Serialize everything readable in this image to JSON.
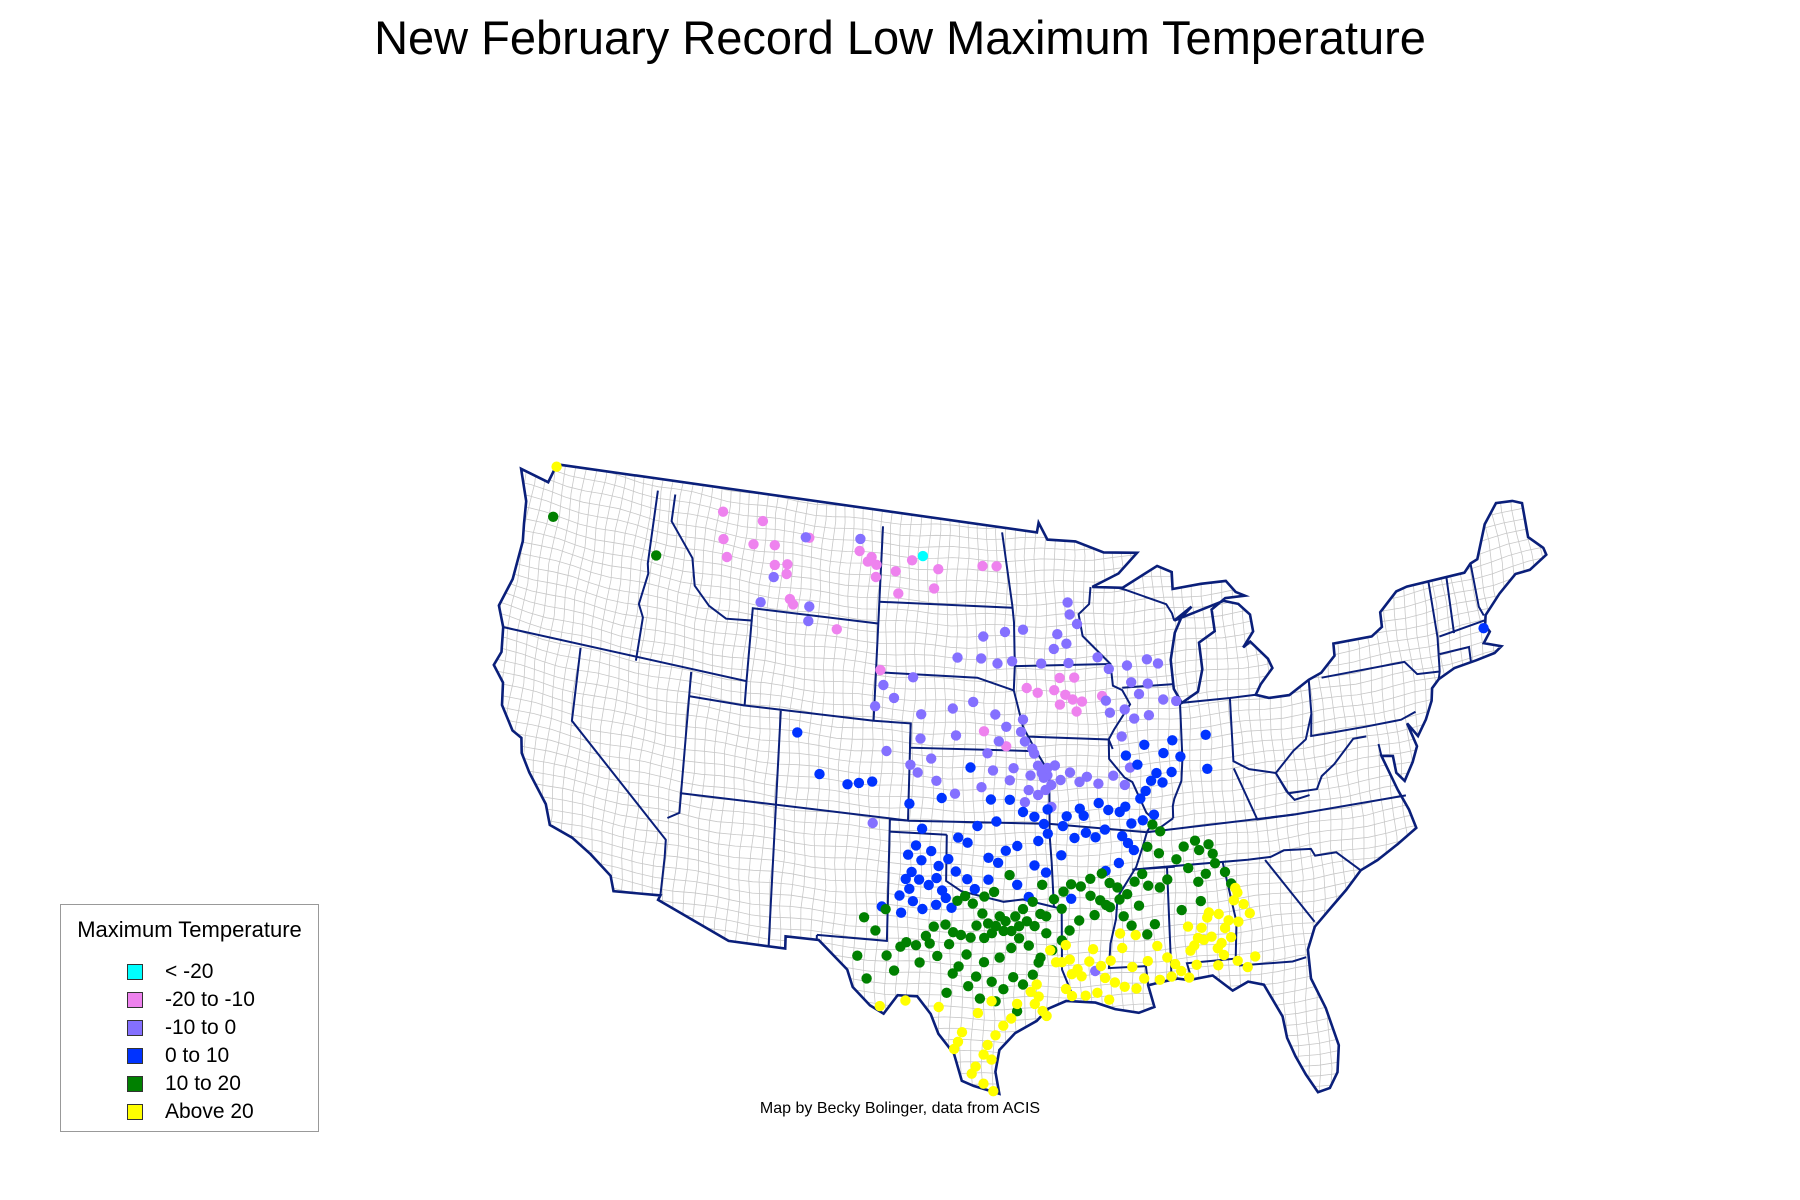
{
  "title": "New February Record Low Maximum Temperature",
  "credit": "Map by Becky Bolinger, data from ACIS",
  "legend": {
    "title": "Maximum Temperature",
    "items": [
      {
        "label": "< -20",
        "color": "#00ffff"
      },
      {
        "label": "-20 to -10",
        "color": "#ee82ee"
      },
      {
        "label": "-10 to 0",
        "color": "#8470ff"
      },
      {
        "label": "0 to 10",
        "color": "#0033ff"
      },
      {
        "label": "10 to 20",
        "color": "#008000"
      },
      {
        "label": "Above 20",
        "color": "#ffff00"
      }
    ]
  },
  "colors": {
    "state_border": "#0a1f7a",
    "county_border": "#c8c8c8"
  },
  "stations": {
    "lt_m20": [
      [
        -101.7,
        47.9
      ]
    ],
    "m20_m10": [
      [
        -113.2,
        48.7
      ],
      [
        -110.9,
        48.6
      ],
      [
        -108.2,
        48.2
      ],
      [
        -113.0,
        47.6
      ],
      [
        -111.3,
        47.6
      ],
      [
        -110.1,
        47.7
      ],
      [
        -104.6,
        47.7
      ],
      [
        -102.3,
        47.7
      ],
      [
        -100.8,
        47.4
      ],
      [
        -98.3,
        47.6
      ],
      [
        -97.5,
        47.6
      ],
      [
        -109.3,
        47.0
      ],
      [
        -112.7,
        46.9
      ],
      [
        -110.0,
        46.9
      ],
      [
        -109.3,
        46.6
      ],
      [
        -105.3,
        47.9
      ],
      [
        -104.8,
        47.5
      ],
      [
        -104.3,
        47.4
      ],
      [
        -103.2,
        47.2
      ],
      [
        -104.3,
        46.9
      ],
      [
        -101.0,
        46.6
      ],
      [
        -103.0,
        46.3
      ],
      [
        -109.0,
        45.6
      ],
      [
        -108.8,
        45.4
      ],
      [
        -106.3,
        44.6
      ],
      [
        -103.8,
        43.1
      ],
      [
        -94.0,
        43.0
      ],
      [
        -93.2,
        43.0
      ],
      [
        -95.8,
        42.6
      ],
      [
        -95.2,
        42.4
      ],
      [
        -94.3,
        42.5
      ],
      [
        -93.7,
        42.3
      ],
      [
        -93.3,
        42.1
      ],
      [
        -92.8,
        42.0
      ],
      [
        -91.7,
        42.2
      ],
      [
        -94.0,
        41.9
      ],
      [
        -93.1,
        41.6
      ],
      [
        -98.1,
        40.8
      ],
      [
        -96.9,
        40.2
      ]
    ],
    "m10_0": [
      [
        -108.4,
        48.2
      ],
      [
        -105.3,
        48.4
      ],
      [
        -110.0,
        46.4
      ],
      [
        -110.6,
        45.3
      ],
      [
        -107.9,
        45.4
      ],
      [
        -107.9,
        44.8
      ],
      [
        -98.2,
        44.7
      ],
      [
        -97.0,
        44.9
      ],
      [
        -96.0,
        45.0
      ],
      [
        -94.1,
        44.8
      ],
      [
        -93.5,
        46.1
      ],
      [
        -93.4,
        45.6
      ],
      [
        -93.0,
        45.2
      ],
      [
        -94.3,
        44.2
      ],
      [
        -93.6,
        44.4
      ],
      [
        -99.6,
        43.8
      ],
      [
        -98.3,
        43.8
      ],
      [
        -97.4,
        43.6
      ],
      [
        -96.6,
        43.7
      ],
      [
        -95.0,
        43.6
      ],
      [
        -93.5,
        43.6
      ],
      [
        -91.9,
        43.8
      ],
      [
        -91.3,
        43.3
      ],
      [
        -90.3,
        43.4
      ],
      [
        -89.2,
        43.6
      ],
      [
        -88.6,
        43.4
      ],
      [
        -102.0,
        42.9
      ],
      [
        -103.6,
        42.5
      ],
      [
        -103.0,
        42.0
      ],
      [
        -104.0,
        41.6
      ],
      [
        -101.5,
        41.4
      ],
      [
        -99.8,
        41.7
      ],
      [
        -98.7,
        42.0
      ],
      [
        -97.5,
        41.5
      ],
      [
        -96.9,
        41.0
      ],
      [
        -96.0,
        41.3
      ],
      [
        -96.1,
        40.8
      ],
      [
        -95.9,
        40.4
      ],
      [
        -95.5,
        40.1
      ],
      [
        -91.5,
        42.0
      ],
      [
        -91.3,
        41.5
      ],
      [
        -90.5,
        41.6
      ],
      [
        -90.0,
        41.2
      ],
      [
        -89.2,
        41.3
      ],
      [
        -88.4,
        41.9
      ],
      [
        -87.7,
        41.8
      ],
      [
        -99.6,
        40.6
      ],
      [
        -97.3,
        40.4
      ],
      [
        -97.9,
        39.9
      ],
      [
        -101.5,
        40.4
      ],
      [
        -103.3,
        39.8
      ],
      [
        -102.0,
        39.3
      ],
      [
        -100.9,
        39.6
      ],
      [
        -95.4,
        39.9
      ],
      [
        -95.2,
        39.4
      ],
      [
        -94.7,
        39.0
      ],
      [
        -94.3,
        39.4
      ],
      [
        -94.0,
        38.8
      ],
      [
        -93.5,
        39.1
      ],
      [
        -93.0,
        38.7
      ],
      [
        -92.6,
        38.9
      ],
      [
        -92.0,
        38.6
      ],
      [
        -91.2,
        38.9
      ],
      [
        -90.3,
        39.2
      ],
      [
        -95.7,
        38.4
      ],
      [
        -95.2,
        38.2
      ],
      [
        -96.7,
        38.8
      ],
      [
        -96.5,
        39.3
      ],
      [
        -97.6,
        39.2
      ],
      [
        -98.2,
        38.5
      ],
      [
        -99.6,
        38.2
      ],
      [
        -100.6,
        38.7
      ],
      [
        -101.6,
        39.0
      ],
      [
        -94.5,
        37.7
      ],
      [
        -95.9,
        37.9
      ],
      [
        -95.6,
        39.0
      ],
      [
        -95.0,
        39.1
      ],
      [
        -94.7,
        39.3
      ],
      [
        -94.9,
        38.9
      ],
      [
        -94.5,
        38.6
      ],
      [
        -94.8,
        38.4
      ],
      [
        -90.6,
        38.5
      ],
      [
        -103.9,
        36.8
      ],
      [
        -92.3,
        30.9
      ],
      [
        -89.7,
        42.2
      ],
      [
        -89.2,
        42.6
      ],
      [
        -90.1,
        42.7
      ],
      [
        -90.7,
        40.5
      ]
    ],
    "p0_10": [
      [
        -108.1,
        40.2
      ],
      [
        -106.8,
        38.6
      ],
      [
        -105.3,
        38.3
      ],
      [
        -104.7,
        38.4
      ],
      [
        -104.0,
        38.5
      ],
      [
        -102.0,
        37.7
      ],
      [
        -100.3,
        38.0
      ],
      [
        -98.8,
        39.3
      ],
      [
        -97.7,
        38.0
      ],
      [
        -97.4,
        37.1
      ],
      [
        -96.7,
        38.0
      ],
      [
        -96.0,
        37.5
      ],
      [
        -95.4,
        37.3
      ],
      [
        -94.9,
        37.0
      ],
      [
        -94.7,
        37.6
      ],
      [
        -93.7,
        37.3
      ],
      [
        -93.0,
        37.6
      ],
      [
        -92.8,
        37.3
      ],
      [
        -92.0,
        37.8
      ],
      [
        -91.5,
        37.5
      ],
      [
        -90.9,
        37.4
      ],
      [
        -90.6,
        37.6
      ],
      [
        -89.8,
        37.9
      ],
      [
        -89.5,
        38.2
      ],
      [
        -89.2,
        38.6
      ],
      [
        -88.9,
        38.9
      ],
      [
        -88.6,
        38.5
      ],
      [
        -88.1,
        38.9
      ],
      [
        -88.5,
        39.7
      ],
      [
        -88.0,
        40.2
      ],
      [
        -87.6,
        39.5
      ],
      [
        -90.5,
        39.7
      ],
      [
        -89.9,
        39.3
      ],
      [
        -89.5,
        40.1
      ],
      [
        -86.2,
        40.3
      ],
      [
        -86.2,
        38.9
      ],
      [
        -98.4,
        36.9
      ],
      [
        -99.4,
        36.4
      ],
      [
        -98.9,
        36.2
      ],
      [
        -97.8,
        35.6
      ],
      [
        -97.3,
        35.4
      ],
      [
        -96.9,
        35.9
      ],
      [
        -96.3,
        36.1
      ],
      [
        -95.2,
        36.3
      ],
      [
        -94.7,
        36.6
      ],
      [
        -93.9,
        36.9
      ],
      [
        -93.3,
        36.4
      ],
      [
        -92.7,
        36.6
      ],
      [
        -92.2,
        36.4
      ],
      [
        -91.7,
        36.7
      ],
      [
        -90.8,
        36.4
      ],
      [
        -90.3,
        36.9
      ],
      [
        -89.7,
        37.0
      ],
      [
        -89.1,
        37.2
      ],
      [
        -101.3,
        36.7
      ],
      [
        -101.6,
        36.0
      ],
      [
        -102.0,
        35.6
      ],
      [
        -101.3,
        35.4
      ],
      [
        -100.8,
        35.8
      ],
      [
        -100.4,
        35.2
      ],
      [
        -99.9,
        35.5
      ],
      [
        -99.5,
        35.0
      ],
      [
        -98.9,
        34.7
      ],
      [
        -98.5,
        34.3
      ],
      [
        -101.8,
        34.9
      ],
      [
        -102.1,
        34.6
      ],
      [
        -101.9,
        34.2
      ],
      [
        -101.4,
        34.6
      ],
      [
        -100.9,
        34.4
      ],
      [
        -100.5,
        34.7
      ],
      [
        -100.2,
        34.2
      ],
      [
        -102.4,
        33.9
      ],
      [
        -101.7,
        33.7
      ],
      [
        -101.2,
        33.4
      ],
      [
        -100.5,
        33.6
      ],
      [
        -100.0,
        33.9
      ],
      [
        -99.7,
        33.5
      ],
      [
        -103.3,
        33.4
      ],
      [
        -102.3,
        33.2
      ],
      [
        -97.8,
        34.7
      ],
      [
        -96.3,
        34.5
      ],
      [
        -95.7,
        34.0
      ],
      [
        -95.4,
        35.3
      ],
      [
        -94.8,
        35.0
      ],
      [
        -93.5,
        33.9
      ],
      [
        -94.0,
        35.7
      ],
      [
        -91.7,
        35.0
      ],
      [
        -91.0,
        35.3
      ],
      [
        -90.2,
        35.8
      ],
      [
        -90.5,
        36.1
      ],
      [
        -70.9,
        42.6
      ]
    ],
    "p10_20": [
      [
        -122.5,
        46.9
      ],
      [
        -116.6,
        46.4
      ],
      [
        -89.2,
        36.8
      ],
      [
        -88.8,
        36.5
      ],
      [
        -89.5,
        35.9
      ],
      [
        -88.9,
        35.6
      ],
      [
        -88.0,
        35.3
      ],
      [
        -87.6,
        35.8
      ],
      [
        -87.0,
        36.0
      ],
      [
        -86.8,
        35.6
      ],
      [
        -86.3,
        35.8
      ],
      [
        -86.1,
        35.4
      ],
      [
        -86.0,
        35.0
      ],
      [
        -87.4,
        34.9
      ],
      [
        -86.9,
        34.3
      ],
      [
        -86.5,
        34.6
      ],
      [
        -88.5,
        34.5
      ],
      [
        -88.9,
        34.2
      ],
      [
        -89.5,
        34.3
      ],
      [
        -89.8,
        34.8
      ],
      [
        -90.2,
        34.5
      ],
      [
        -90.6,
        34.0
      ],
      [
        -91.1,
        34.3
      ],
      [
        -91.5,
        34.5
      ],
      [
        -91.9,
        34.9
      ],
      [
        -92.5,
        34.7
      ],
      [
        -93.0,
        34.4
      ],
      [
        -93.5,
        34.5
      ],
      [
        -93.9,
        34.2
      ],
      [
        -94.0,
        33.5
      ],
      [
        -92.3,
        33.2
      ],
      [
        -91.7,
        33.6
      ],
      [
        -91.0,
        33.8
      ],
      [
        -90.0,
        33.5
      ],
      [
        -89.2,
        32.7
      ],
      [
        -89.6,
        32.3
      ],
      [
        -90.4,
        32.7
      ],
      [
        -95.1,
        33.3
      ],
      [
        -95.5,
        33.8
      ],
      [
        -96.0,
        33.5
      ],
      [
        -96.4,
        33.2
      ],
      [
        -96.9,
        33.0
      ],
      [
        -97.2,
        33.2
      ],
      [
        -97.4,
        32.8
      ],
      [
        -97.6,
        32.5
      ],
      [
        -97.8,
        32.9
      ],
      [
        -98.1,
        33.3
      ],
      [
        -98.4,
        32.8
      ],
      [
        -98.7,
        32.3
      ],
      [
        -99.2,
        32.4
      ],
      [
        -99.6,
        32.5
      ],
      [
        -100.0,
        32.8
      ],
      [
        -100.6,
        32.7
      ],
      [
        -101.0,
        32.3
      ],
      [
        -101.5,
        31.9
      ],
      [
        -102.0,
        32.0
      ],
      [
        -102.3,
        31.8
      ],
      [
        -103.0,
        31.4
      ],
      [
        -104.5,
        31.3
      ],
      [
        -104.0,
        30.4
      ],
      [
        -102.6,
        30.8
      ],
      [
        -101.3,
        31.2
      ],
      [
        -100.4,
        31.5
      ],
      [
        -99.3,
        31.1
      ],
      [
        -98.9,
        31.6
      ],
      [
        -98.0,
        31.3
      ],
      [
        -97.2,
        31.5
      ],
      [
        -96.6,
        31.9
      ],
      [
        -96.2,
        32.3
      ],
      [
        -95.7,
        32.0
      ],
      [
        -95.1,
        31.5
      ],
      [
        -94.5,
        31.8
      ],
      [
        -94.0,
        32.2
      ],
      [
        -93.6,
        32.6
      ],
      [
        -93.1,
        33.0
      ],
      [
        -97.6,
        30.5
      ],
      [
        -98.4,
        30.7
      ],
      [
        -98.8,
        30.3
      ],
      [
        -99.6,
        30.8
      ],
      [
        -99.9,
        30.0
      ],
      [
        -97.0,
        30.2
      ],
      [
        -96.5,
        30.7
      ],
      [
        -96.0,
        30.4
      ],
      [
        -95.5,
        30.8
      ],
      [
        -95.2,
        31.3
      ],
      [
        -98.2,
        29.8
      ],
      [
        -97.4,
        29.7
      ],
      [
        -96.3,
        29.3
      ],
      [
        -94.8,
        33.2
      ],
      [
        -94.4,
        33.9
      ],
      [
        -95.0,
        34.5
      ],
      [
        -96.7,
        34.9
      ],
      [
        -97.5,
        34.2
      ],
      [
        -98.0,
        34.0
      ],
      [
        -98.6,
        33.7
      ],
      [
        -99.0,
        34.0
      ],
      [
        -99.4,
        33.8
      ],
      [
        -100.8,
        32.0
      ],
      [
        -99.8,
        32.0
      ],
      [
        -103.6,
        32.4
      ],
      [
        -104.2,
        32.9
      ],
      [
        -103.1,
        33.3
      ],
      [
        -98.0,
        32.3
      ],
      [
        -97.0,
        32.6
      ],
      [
        -96.6,
        32.6
      ],
      [
        -96.2,
        32.8
      ],
      [
        -95.8,
        33.0
      ],
      [
        -95.4,
        32.8
      ],
      [
        -94.8,
        32.5
      ],
      [
        -92.5,
        34.0
      ],
      [
        -92.0,
        33.8
      ],
      [
        -91.5,
        33.5
      ],
      [
        -90.8,
        33.1
      ],
      [
        -85.5,
        34.6
      ],
      [
        -85.2,
        34.1
      ],
      [
        -87.8,
        33.2
      ],
      [
        -86.8,
        33.5
      ]
    ],
    "above20": [
      [
        -122.8,
        48.9
      ],
      [
        -91.0,
        32.4
      ],
      [
        -90.2,
        32.3
      ],
      [
        -89.1,
        31.8
      ],
      [
        -88.6,
        31.3
      ],
      [
        -88.2,
        31.0
      ],
      [
        -87.9,
        30.7
      ],
      [
        -87.5,
        30.4
      ],
      [
        -86.8,
        32.4
      ],
      [
        -86.3,
        32.0
      ],
      [
        -86.0,
        31.5
      ],
      [
        -85.7,
        31.2
      ],
      [
        -85.4,
        32.6
      ],
      [
        -85.1,
        33.4
      ],
      [
        -84.9,
        33.7
      ],
      [
        -84.6,
        33.2
      ],
      [
        -84.3,
        32.8
      ],
      [
        -84.9,
        32.5
      ],
      [
        -85.3,
        31.9
      ],
      [
        -85.6,
        32.3
      ],
      [
        -85.0,
        33.9
      ],
      [
        -85.9,
        32.9
      ],
      [
        -86.5,
        32.8
      ],
      [
        -87.4,
        31.5
      ],
      [
        -87.1,
        30.9
      ],
      [
        -86.4,
        33.0
      ],
      [
        -94.0,
        31.3
      ],
      [
        -93.5,
        30.8
      ],
      [
        -93.2,
        31.0
      ],
      [
        -93.0,
        30.7
      ],
      [
        -92.6,
        31.3
      ],
      [
        -92.0,
        31.1
      ],
      [
        -91.8,
        30.6
      ],
      [
        -91.3,
        30.4
      ],
      [
        -90.8,
        30.2
      ],
      [
        -90.2,
        30.1
      ],
      [
        -89.8,
        30.5
      ],
      [
        -93.8,
        30.2
      ],
      [
        -93.5,
        29.9
      ],
      [
        -92.8,
        29.9
      ],
      [
        -92.2,
        30.0
      ],
      [
        -91.6,
        29.7
      ],
      [
        -95.2,
        29.9
      ],
      [
        -95.4,
        29.6
      ],
      [
        -95.0,
        29.3
      ],
      [
        -94.8,
        29.1
      ],
      [
        -96.3,
        29.6
      ],
      [
        -96.6,
        29.0
      ],
      [
        -97.0,
        28.7
      ],
      [
        -97.4,
        28.3
      ],
      [
        -97.8,
        27.9
      ],
      [
        -98.0,
        27.5
      ],
      [
        -97.6,
        27.3
      ],
      [
        -98.4,
        27.0
      ],
      [
        -98.6,
        26.7
      ],
      [
        -98.0,
        26.3
      ],
      [
        -97.5,
        26.0
      ],
      [
        -99.1,
        28.4
      ],
      [
        -99.3,
        28.0
      ],
      [
        -99.5,
        27.7
      ],
      [
        -100.3,
        29.4
      ],
      [
        -102.0,
        29.6
      ],
      [
        -103.3,
        29.3
      ],
      [
        -98.3,
        29.2
      ],
      [
        -97.6,
        29.7
      ],
      [
        -95.3,
        30.4
      ],
      [
        -95.6,
        30.1
      ],
      [
        -94.6,
        31.8
      ],
      [
        -94.3,
        31.3
      ],
      [
        -93.8,
        32.0
      ],
      [
        -93.6,
        31.4
      ],
      [
        -92.4,
        31.8
      ],
      [
        -91.5,
        31.3
      ],
      [
        -90.9,
        31.8
      ],
      [
        -90.4,
        31.0
      ],
      [
        -89.6,
        31.2
      ],
      [
        -89.0,
        30.4
      ],
      [
        -88.4,
        30.5
      ],
      [
        -84.5,
        30.6
      ],
      [
        -84.1,
        31.0
      ],
      [
        -86.0,
        30.8
      ],
      [
        -85.8,
        31.7
      ],
      [
        -86.7,
        31.9
      ],
      [
        -87.0,
        32.0
      ],
      [
        -87.5,
        32.5
      ],
      [
        -87.2,
        31.7
      ],
      [
        -85.0,
        30.9
      ]
    ]
  }
}
